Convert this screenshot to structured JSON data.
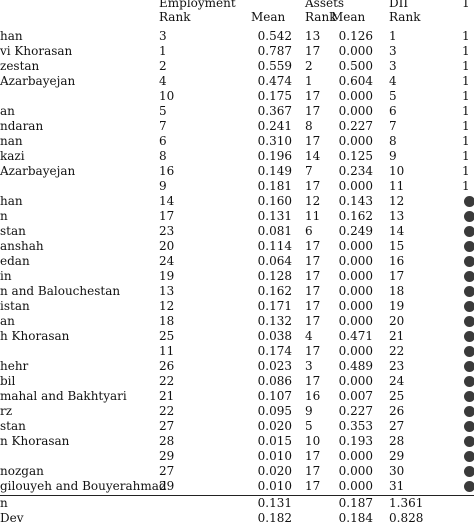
{
  "headers": {
    "employment": "Employment",
    "assets": "Assets",
    "dii": "DII",
    "rank": "Rank",
    "mean": "Mean",
    "edge_mark": "1"
  },
  "rows": [
    {
      "name": "han",
      "er": "3",
      "em": "0.542",
      "ar": "13",
      "am": "0.126",
      "dr": "1",
      "dm": "1",
      "dot": false
    },
    {
      "name": "vi Khorasan",
      "er": "1",
      "em": "0.787",
      "ar": "17",
      "am": "0.000",
      "dr": "3",
      "dm": "1",
      "dot": false
    },
    {
      "name": "zestan",
      "er": "2",
      "em": "0.559",
      "ar": "2",
      "am": "0.500",
      "dr": "3",
      "dm": "1",
      "dot": false
    },
    {
      "name": " Azarbayejan",
      "er": "4",
      "em": "0.474",
      "ar": "1",
      "am": "0.604",
      "dr": "4",
      "dm": "1",
      "dot": false
    },
    {
      "name": "",
      "er": "10",
      "em": "0.175",
      "ar": "17",
      "am": "0.000",
      "dr": "5",
      "dm": "1",
      "dot": false
    },
    {
      "name": "an",
      "er": "5",
      "em": "0.367",
      "ar": "17",
      "am": "0.000",
      "dr": "6",
      "dm": "1",
      "dot": false
    },
    {
      "name": "ndaran",
      "er": "7",
      "em": "0.241",
      "ar": "8",
      "am": "0.227",
      "dr": "7",
      "dm": "1",
      "dot": false
    },
    {
      "name": "nan",
      "er": "6",
      "em": "0.310",
      "ar": "17",
      "am": "0.000",
      "dr": "8",
      "dm": "1",
      "dot": false
    },
    {
      "name": "kazi",
      "er": "8",
      "em": "0.196",
      "ar": "14",
      "am": "0.125",
      "dr": "9",
      "dm": "1",
      "dot": false
    },
    {
      "name": " Azarbayejan",
      "er": "16",
      "em": "0.149",
      "ar": "7",
      "am": "0.234",
      "dr": "10",
      "dm": "1",
      "dot": false
    },
    {
      "name": "",
      "er": "9",
      "em": "0.181",
      "ar": "17",
      "am": "0.000",
      "dr": "11",
      "dm": "1",
      "dot": false
    },
    {
      "name": "han",
      "er": "14",
      "em": "0.160",
      "ar": "12",
      "am": "0.143",
      "dr": "12",
      "dm": "",
      "dot": true
    },
    {
      "name": "n",
      "er": "17",
      "em": "0.131",
      "ar": "11",
      "am": "0.162",
      "dr": "13",
      "dm": "",
      "dot": true
    },
    {
      "name": "stan",
      "er": "23",
      "em": "0.081",
      "ar": "6",
      "am": "0.249",
      "dr": "14",
      "dm": "",
      "dot": true
    },
    {
      "name": "anshah",
      "er": "20",
      "em": "0.114",
      "ar": "17",
      "am": "0.000",
      "dr": "15",
      "dm": "",
      "dot": true
    },
    {
      "name": "edan",
      "er": "24",
      "em": "0.064",
      "ar": "17",
      "am": "0.000",
      "dr": "16",
      "dm": "",
      "dot": true
    },
    {
      "name": "in",
      "er": "19",
      "em": "0.128",
      "ar": "17",
      "am": "0.000",
      "dr": "17",
      "dm": "",
      "dot": true
    },
    {
      "name": "n and Balouchestan",
      "er": "13",
      "em": "0.162",
      "ar": "17",
      "am": "0.000",
      "dr": "18",
      "dm": "",
      "dot": true
    },
    {
      "name": "istan",
      "er": "12",
      "em": "0.171",
      "ar": "17",
      "am": "0.000",
      "dr": "19",
      "dm": "",
      "dot": true
    },
    {
      "name": "an",
      "er": "18",
      "em": "0.132",
      "ar": "17",
      "am": "0.000",
      "dr": "20",
      "dm": "",
      "dot": true
    },
    {
      "name": "h Khorasan",
      "er": "25",
      "em": "0.038",
      "ar": "4",
      "am": "0.471",
      "dr": "21",
      "dm": "",
      "dot": true
    },
    {
      "name": "",
      "er": "11",
      "em": "0.174",
      "ar": "17",
      "am": "0.000",
      "dr": "22",
      "dm": "",
      "dot": true
    },
    {
      "name": "hehr",
      "er": "26",
      "em": "0.023",
      "ar": "3",
      "am": "0.489",
      "dr": "23",
      "dm": "",
      "dot": true
    },
    {
      "name": "bil",
      "er": "22",
      "em": "0.086",
      "ar": "17",
      "am": "0.000",
      "dr": "24",
      "dm": "",
      "dot": true
    },
    {
      "name": "mahal and Bakhtyari",
      "er": "21",
      "em": "0.107",
      "ar": "16",
      "am": "0.007",
      "dr": "25",
      "dm": "",
      "dot": true
    },
    {
      "name": "rz",
      "er": "22",
      "em": "0.095",
      "ar": "9",
      "am": "0.227",
      "dr": "26",
      "dm": "",
      "dot": true
    },
    {
      "name": "stan",
      "er": "27",
      "em": "0.020",
      "ar": "5",
      "am": "0.353",
      "dr": "27",
      "dm": "",
      "dot": true
    },
    {
      "name": "n Khorasan",
      "er": "28",
      "em": "0.015",
      "ar": "10",
      "am": "0.193",
      "dr": "28",
      "dm": "",
      "dot": true
    },
    {
      "name": "",
      "er": "29",
      "em": "0.010",
      "ar": "17",
      "am": "0.000",
      "dr": "29",
      "dm": "",
      "dot": true
    },
    {
      "name": "nozgan",
      "er": "27",
      "em": "0.020",
      "ar": "17",
      "am": "0.000",
      "dr": "30",
      "dm": "",
      "dot": true
    },
    {
      "name": "gilouyeh and Bouyerahmad",
      "er": "29",
      "em": "0.010",
      "ar": "17",
      "am": "0.000",
      "dr": "31",
      "dm": "",
      "dot": true
    }
  ],
  "summary": [
    {
      "name": "n",
      "er": "",
      "em": "0.131",
      "ar": "",
      "am": "0.187",
      "dr": "1.361",
      "dm": "",
      "dot": false
    },
    {
      "name": "Dev",
      "er": "",
      "em": "0.182",
      "ar": "",
      "am": "0.184",
      "dr": "0.828",
      "dm": "",
      "dot": false
    }
  ]
}
